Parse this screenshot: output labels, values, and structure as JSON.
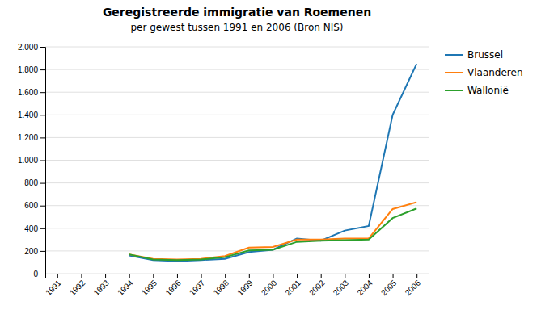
{
  "chart_data": {
    "type": "line",
    "title": "Geregistreerde immigratie van Roemenen",
    "subtitle": "per gewest tussen 1991 en 2006 (Bron NIS)",
    "x": [
      1991,
      1992,
      1993,
      1994,
      1995,
      1996,
      1997,
      1998,
      1999,
      2000,
      2001,
      2002,
      2003,
      2004,
      2005,
      2006
    ],
    "series": [
      {
        "name": "Brussel",
        "values": [
          null,
          null,
          null,
          160,
          120,
          110,
          120,
          130,
          190,
          210,
          310,
          290,
          380,
          420,
          1400,
          1850
        ]
      },
      {
        "name": "Vlaanderen",
        "values": [
          null,
          null,
          null,
          170,
          130,
          125,
          130,
          155,
          230,
          235,
          300,
          300,
          310,
          310,
          570,
          630
        ]
      },
      {
        "name": "Wallonië",
        "values": [
          null,
          null,
          null,
          170,
          125,
          120,
          125,
          145,
          205,
          210,
          280,
          290,
          295,
          300,
          490,
          575
        ]
      }
    ],
    "xlim": [
      1990.5,
      2006.5
    ],
    "xticks": [
      1991,
      1992,
      1993,
      1994,
      1995,
      1996,
      1997,
      1998,
      1999,
      2000,
      2001,
      2002,
      2003,
      2004,
      2005,
      2006
    ],
    "ylim": [
      0,
      2000
    ],
    "yticks": [
      0,
      200,
      400,
      600,
      800,
      {
        "value": 1000,
        "label": "1.000"
      },
      {
        "value": 1200,
        "label": "1.200"
      },
      {
        "value": 1400,
        "label": "1.400"
      },
      {
        "value": 1600,
        "label": "1.600"
      },
      {
        "value": 1800,
        "label": "1.800"
      },
      {
        "value": 2000,
        "label": "2.000"
      }
    ],
    "grid": true,
    "legend": "right"
  }
}
